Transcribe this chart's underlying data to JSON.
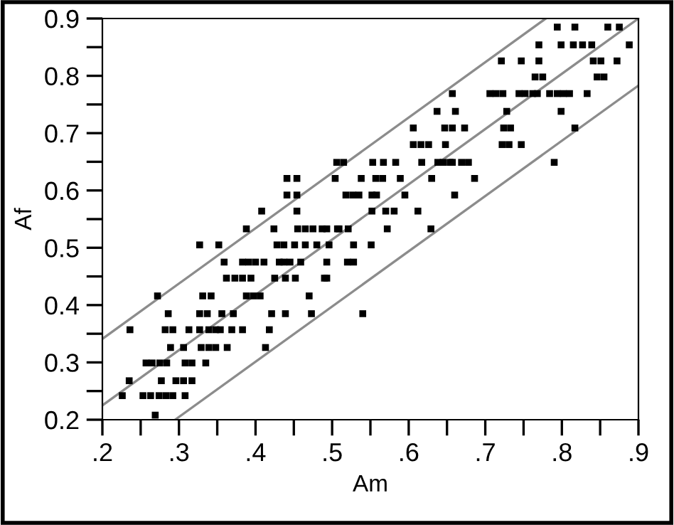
{
  "chart_data": {
    "type": "scatter",
    "xlabel": "Am",
    "ylabel": "Af",
    "xlim": [
      0.2,
      0.9
    ],
    "ylim": [
      0.2,
      0.9
    ],
    "xticks": [
      {
        "value": 0.2,
        "label": ".2"
      },
      {
        "value": 0.25,
        "label": null
      },
      {
        "value": 0.3,
        "label": ".3"
      },
      {
        "value": 0.35,
        "label": null
      },
      {
        "value": 0.4,
        "label": ".4"
      },
      {
        "value": 0.45,
        "label": null
      },
      {
        "value": 0.5,
        "label": ".5"
      },
      {
        "value": 0.55,
        "label": null
      },
      {
        "value": 0.6,
        "label": ".6"
      },
      {
        "value": 0.65,
        "label": null
      },
      {
        "value": 0.7,
        "label": ".7"
      },
      {
        "value": 0.75,
        "label": null
      },
      {
        "value": 0.8,
        "label": ".8"
      },
      {
        "value": 0.85,
        "label": null
      },
      {
        "value": 0.9,
        "label": ".9"
      }
    ],
    "yticks": [
      0.2,
      {
        "value": 0.25,
        "label": null
      },
      0.3,
      {
        "value": 0.35,
        "label": null
      },
      0.4,
      {
        "value": 0.45,
        "label": null
      },
      0.5,
      {
        "value": 0.55,
        "label": null
      },
      0.6,
      {
        "value": 0.65,
        "label": null
      },
      0.7,
      {
        "value": 0.75,
        "label": null
      },
      0.8,
      {
        "value": 0.85,
        "label": null
      },
      0.9
    ],
    "grid": false,
    "legend": false,
    "series": [
      {
        "color": "#000000",
        "marker": "square",
        "x": [
          0.794,
          0.817,
          0.86,
          0.875,
          0.77,
          0.799,
          0.815,
          0.827,
          0.839,
          0.888,
          0.721,
          0.747,
          0.77,
          0.841,
          0.851,
          0.872,
          0.765,
          0.775,
          0.846,
          0.855,
          0.657,
          0.706,
          0.714,
          0.723,
          0.744,
          0.752,
          0.762,
          0.768,
          0.784,
          0.794,
          0.802,
          0.81,
          0.833,
          0.637,
          0.661,
          0.728,
          0.799,
          0.606,
          0.647,
          0.657,
          0.673,
          0.724,
          0.733,
          0.817,
          0.606,
          0.616,
          0.626,
          0.648,
          0.722,
          0.731,
          0.747,
          0.506,
          0.515,
          0.553,
          0.567,
          0.583,
          0.617,
          0.638,
          0.645,
          0.654,
          0.657,
          0.669,
          0.678,
          0.79,
          0.441,
          0.454,
          0.504,
          0.538,
          0.557,
          0.566,
          0.589,
          0.63,
          0.686,
          0.441,
          0.454,
          0.518,
          0.527,
          0.535,
          0.552,
          0.558,
          0.595,
          0.66,
          0.408,
          0.454,
          0.552,
          0.57,
          0.581,
          0.612,
          0.388,
          0.424,
          0.455,
          0.465,
          0.475,
          0.487,
          0.493,
          0.507,
          0.509,
          0.521,
          0.572,
          0.629,
          0.327,
          0.352,
          0.428,
          0.437,
          0.451,
          0.465,
          0.48,
          0.496,
          0.528,
          0.551,
          0.359,
          0.383,
          0.391,
          0.4,
          0.411,
          0.431,
          0.437,
          0.445,
          0.459,
          0.493,
          0.52,
          0.528,
          0.362,
          0.373,
          0.383,
          0.394,
          0.425,
          0.439,
          0.452,
          0.49,
          0.493,
          0.272,
          0.331,
          0.342,
          0.388,
          0.397,
          0.406,
          0.47,
          0.286,
          0.327,
          0.337,
          0.356,
          0.371,
          0.421,
          0.439,
          0.473,
          0.54,
          0.236,
          0.282,
          0.292,
          0.313,
          0.327,
          0.339,
          0.348,
          0.354,
          0.369,
          0.383,
          0.418,
          0.289,
          0.306,
          0.329,
          0.339,
          0.348,
          0.363,
          0.413,
          0.257,
          0.265,
          0.275,
          0.284,
          0.308,
          0.317,
          0.335,
          0.235,
          0.277,
          0.296,
          0.306,
          0.317,
          0.226,
          0.253,
          0.263,
          0.274,
          0.283,
          0.292,
          0.308,
          0.269
        ],
        "values": [
          0.885,
          0.885,
          0.885,
          0.885,
          0.854,
          0.854,
          0.854,
          0.854,
          0.854,
          0.854,
          0.826,
          0.826,
          0.826,
          0.826,
          0.826,
          0.826,
          0.798,
          0.798,
          0.798,
          0.798,
          0.769,
          0.769,
          0.769,
          0.769,
          0.769,
          0.769,
          0.769,
          0.769,
          0.769,
          0.769,
          0.769,
          0.769,
          0.769,
          0.738,
          0.738,
          0.738,
          0.738,
          0.709,
          0.709,
          0.709,
          0.709,
          0.709,
          0.709,
          0.709,
          0.68,
          0.68,
          0.68,
          0.68,
          0.68,
          0.68,
          0.68,
          0.649,
          0.649,
          0.649,
          0.649,
          0.649,
          0.649,
          0.649,
          0.649,
          0.649,
          0.649,
          0.649,
          0.649,
          0.649,
          0.621,
          0.621,
          0.621,
          0.621,
          0.621,
          0.621,
          0.621,
          0.621,
          0.621,
          0.592,
          0.592,
          0.592,
          0.592,
          0.592,
          0.592,
          0.592,
          0.592,
          0.592,
          0.564,
          0.564,
          0.564,
          0.564,
          0.564,
          0.564,
          0.533,
          0.533,
          0.533,
          0.533,
          0.533,
          0.533,
          0.533,
          0.533,
          0.533,
          0.533,
          0.533,
          0.533,
          0.505,
          0.505,
          0.505,
          0.505,
          0.505,
          0.505,
          0.505,
          0.505,
          0.505,
          0.505,
          0.475,
          0.475,
          0.475,
          0.475,
          0.475,
          0.475,
          0.475,
          0.475,
          0.475,
          0.475,
          0.475,
          0.475,
          0.447,
          0.447,
          0.447,
          0.447,
          0.447,
          0.447,
          0.447,
          0.447,
          0.447,
          0.416,
          0.416,
          0.416,
          0.416,
          0.416,
          0.416,
          0.416,
          0.385,
          0.385,
          0.385,
          0.385,
          0.385,
          0.385,
          0.385,
          0.385,
          0.385,
          0.357,
          0.357,
          0.357,
          0.357,
          0.357,
          0.357,
          0.357,
          0.357,
          0.357,
          0.357,
          0.357,
          0.326,
          0.326,
          0.326,
          0.326,
          0.326,
          0.326,
          0.326,
          0.299,
          0.299,
          0.299,
          0.299,
          0.299,
          0.299,
          0.299,
          0.268,
          0.268,
          0.268,
          0.268,
          0.268,
          0.242,
          0.242,
          0.242,
          0.242,
          0.242,
          0.242,
          0.242,
          0.208
        ]
      },
      {
        "type": "line",
        "color": "#8c8c8c",
        "marker": "none",
        "line_style": "solid",
        "x": [
          0.2,
          0.779
        ],
        "values": [
          0.341,
          0.9
        ]
      },
      {
        "type": "line",
        "color": "#8c8c8c",
        "marker": "none",
        "line_style": "solid",
        "x": [
          0.2,
          0.9
        ],
        "values": [
          0.225,
          0.9
        ]
      },
      {
        "type": "line",
        "color": "#8c8c8c",
        "marker": "none",
        "line_style": "solid",
        "x": [
          0.295,
          0.9
        ],
        "values": [
          0.2,
          0.783
        ]
      }
    ]
  }
}
